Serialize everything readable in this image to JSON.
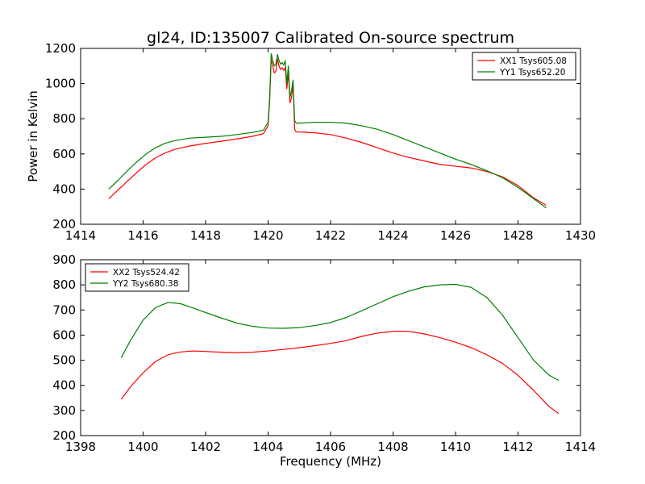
{
  "figure": {
    "title": "gl24, ID:135007 Calibrated On-source spectrum",
    "ylabel": "Power in Kelvin",
    "xlabel": "Frequency (MHz)"
  },
  "chart_data": [
    {
      "type": "line",
      "title": "gl24, ID:135007 Calibrated On-source spectrum",
      "xlabel": "",
      "ylabel": "Power in Kelvin",
      "xlim": [
        1414,
        1430
      ],
      "ylim": [
        200,
        1200
      ],
      "xticks": [
        1414,
        1416,
        1418,
        1420,
        1422,
        1424,
        1426,
        1428,
        1430
      ],
      "yticks": [
        200,
        400,
        600,
        800,
        1000,
        1200
      ],
      "grid": false,
      "legend": "top-right",
      "series": [
        {
          "name": "XX1 Tsys605.08",
          "color": "#ff0000",
          "x": [
            1414.9,
            1415.2,
            1415.5,
            1415.8,
            1416.1,
            1416.4,
            1416.7,
            1417.0,
            1417.5,
            1418.0,
            1418.5,
            1419.0,
            1419.5,
            1419.85,
            1420.0,
            1420.05,
            1420.1,
            1420.15,
            1420.2,
            1420.25,
            1420.3,
            1420.35,
            1420.4,
            1420.45,
            1420.5,
            1420.55,
            1420.6,
            1420.65,
            1420.7,
            1420.75,
            1420.8,
            1420.85,
            1420.9,
            1420.95,
            1421.0,
            1421.5,
            1422.0,
            1422.5,
            1423.0,
            1423.5,
            1424.0,
            1424.5,
            1425.0,
            1425.5,
            1426.0,
            1426.5,
            1427.0,
            1427.5,
            1428.0,
            1428.5,
            1428.9
          ],
          "y": [
            345,
            395,
            445,
            495,
            540,
            578,
            605,
            625,
            645,
            660,
            672,
            685,
            700,
            715,
            760,
            900,
            1140,
            1100,
            1060,
            1070,
            1140,
            1100,
            1080,
            1090,
            1075,
            1090,
            970,
            1060,
            890,
            920,
            1000,
            740,
            725,
            725,
            725,
            720,
            710,
            690,
            665,
            635,
            605,
            580,
            560,
            540,
            530,
            520,
            500,
            470,
            420,
            350,
            308
          ]
        },
        {
          "name": "YY1 Tsys652.20",
          "color": "#008000",
          "x": [
            1414.9,
            1415.2,
            1415.5,
            1415.8,
            1416.1,
            1416.4,
            1416.7,
            1417.0,
            1417.5,
            1418.0,
            1418.5,
            1419.0,
            1419.5,
            1419.85,
            1420.0,
            1420.05,
            1420.1,
            1420.15,
            1420.2,
            1420.25,
            1420.3,
            1420.35,
            1420.4,
            1420.45,
            1420.5,
            1420.55,
            1420.6,
            1420.65,
            1420.7,
            1420.75,
            1420.8,
            1420.85,
            1420.9,
            1420.95,
            1421.0,
            1421.5,
            1422.0,
            1422.5,
            1423.0,
            1423.5,
            1424.0,
            1424.5,
            1425.0,
            1425.5,
            1426.0,
            1426.5,
            1427.0,
            1427.5,
            1428.0,
            1428.5,
            1428.9
          ],
          "y": [
            400,
            450,
            505,
            555,
            600,
            635,
            660,
            675,
            690,
            695,
            700,
            710,
            722,
            735,
            780,
            920,
            1170,
            1130,
            1100,
            1110,
            1165,
            1130,
            1110,
            1120,
            1105,
            1130,
            1000,
            1100,
            920,
            960,
            1020,
            790,
            775,
            775,
            775,
            780,
            780,
            775,
            760,
            740,
            710,
            675,
            640,
            605,
            570,
            540,
            505,
            465,
            410,
            345,
            293
          ]
        }
      ]
    },
    {
      "type": "line",
      "title": "",
      "xlabel": "Frequency (MHz)",
      "ylabel": "",
      "xlim": [
        1398,
        1414
      ],
      "ylim": [
        200,
        900
      ],
      "xticks": [
        1398,
        1400,
        1402,
        1404,
        1406,
        1408,
        1410,
        1412,
        1414
      ],
      "yticks": [
        200,
        300,
        400,
        500,
        600,
        700,
        800,
        900
      ],
      "grid": false,
      "legend": "top-left",
      "series": [
        {
          "name": "XX2 Tsys524.42",
          "color": "#ff0000",
          "x": [
            1399.3,
            1399.6,
            1400.0,
            1400.4,
            1400.8,
            1401.2,
            1401.6,
            1402.0,
            1402.5,
            1403.0,
            1403.5,
            1404.0,
            1404.5,
            1405.0,
            1405.5,
            1406.0,
            1406.5,
            1407.0,
            1407.5,
            1408.0,
            1408.5,
            1409.0,
            1409.5,
            1410.0,
            1410.5,
            1411.0,
            1411.5,
            1412.0,
            1412.5,
            1413.0,
            1413.3
          ],
          "y": [
            345,
            395,
            450,
            495,
            522,
            533,
            537,
            535,
            532,
            530,
            532,
            537,
            543,
            550,
            558,
            567,
            578,
            595,
            608,
            615,
            615,
            605,
            590,
            572,
            550,
            522,
            488,
            440,
            380,
            315,
            288
          ]
        },
        {
          "name": "YY2 Tsys680.38",
          "color": "#008000",
          "x": [
            1399.3,
            1399.6,
            1400.0,
            1400.4,
            1400.8,
            1401.2,
            1401.6,
            1402.0,
            1402.5,
            1403.0,
            1403.5,
            1404.0,
            1404.5,
            1405.0,
            1405.5,
            1406.0,
            1406.5,
            1407.0,
            1407.5,
            1408.0,
            1408.5,
            1409.0,
            1409.5,
            1410.0,
            1410.5,
            1411.0,
            1411.5,
            1412.0,
            1412.5,
            1413.0,
            1413.3
          ],
          "y": [
            510,
            580,
            660,
            710,
            730,
            725,
            708,
            690,
            668,
            648,
            635,
            628,
            627,
            630,
            638,
            650,
            670,
            697,
            725,
            753,
            775,
            792,
            800,
            802,
            790,
            750,
            680,
            590,
            500,
            440,
            420
          ]
        }
      ]
    }
  ]
}
